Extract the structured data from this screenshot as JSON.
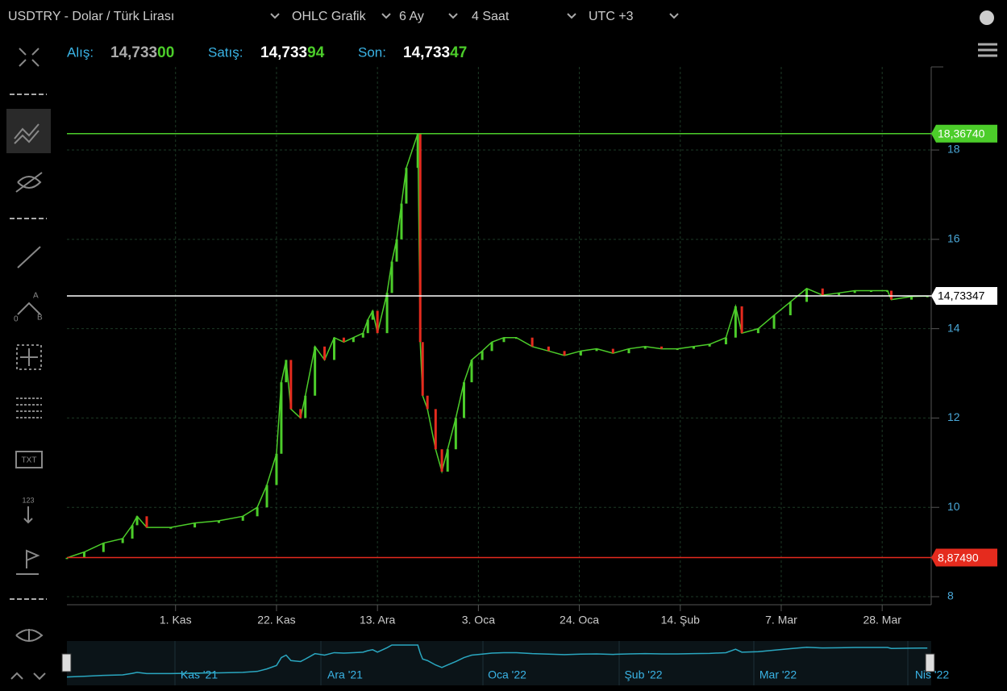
{
  "header": {
    "title": "USDTRY - Dolar / Türk Lirası",
    "menus": [
      "OHLC Grafik",
      "6 Ay",
      "4 Saat",
      "UTC +3"
    ]
  },
  "quote": {
    "bid_label": "Alış:",
    "bid_main": "14,733",
    "bid_tail": "00",
    "ask_label": "Satış:",
    "ask_main": "14,733",
    "ask_tail": "94",
    "last_label": "Son:",
    "last_main": "14,733",
    "last_tail": "47"
  },
  "toolbar": {
    "a": "A",
    "zero": "0",
    "b": "B",
    "txt": "TXT",
    "num": "123"
  },
  "navigator": {
    "labels": [
      "Kas '21",
      "Ara '21",
      "Oca '22",
      "Şub '22",
      "Mar '22",
      "Nis '22"
    ]
  },
  "chart_data": {
    "type": "line",
    "up_color": "#4ccd2a",
    "down_color": "#e52b1e",
    "x": [
      8.4,
      12,
      16,
      20,
      22,
      23,
      25,
      30,
      35,
      40,
      45,
      48,
      50,
      52,
      53,
      54,
      55,
      57,
      58,
      60,
      62,
      64,
      66,
      68,
      70,
      71,
      72,
      73,
      75,
      76,
      77,
      78,
      79,
      81.4,
      81.9,
      82.4,
      83.4,
      85.1,
      86.4,
      87.6,
      89.3,
      91,
      92.6,
      94.8,
      96.8,
      99.3,
      101.9,
      105.2,
      108.6,
      111.9,
      115.3,
      118.6,
      122,
      125.3,
      128.7,
      132.1,
      135.4,
      138.8,
      142.1,
      145.5,
      147.5,
      148.8,
      152.2,
      155.5,
      158.9,
      162.3,
      165.6,
      169,
      172.3,
      175.7,
      179.1,
      179.9,
      184.1,
      187.4
    ],
    "values": [
      8.87,
      9.0,
      9.2,
      9.3,
      9.6,
      9.8,
      9.55,
      9.55,
      9.65,
      9.7,
      9.8,
      10.0,
      10.5,
      11.2,
      12.8,
      13.3,
      12.2,
      12.0,
      12.5,
      13.6,
      13.3,
      13.8,
      13.7,
      13.8,
      13.9,
      14.2,
      14.4,
      13.9,
      14.8,
      15.5,
      16.0,
      16.8,
      17.6,
      18.37,
      13.7,
      12.5,
      12.2,
      11.3,
      10.8,
      11.3,
      12.0,
      12.8,
      13.3,
      13.5,
      13.7,
      13.8,
      13.8,
      13.6,
      13.5,
      13.4,
      13.5,
      13.55,
      13.45,
      13.55,
      13.6,
      13.55,
      13.55,
      13.6,
      13.65,
      13.8,
      14.5,
      13.9,
      14.0,
      14.3,
      14.6,
      14.9,
      14.75,
      14.8,
      14.85,
      14.85,
      14.85,
      14.65,
      14.72,
      14.73
    ],
    "xlim": [
      8.4,
      188.2
    ],
    "xticks": [
      {
        "value": 31,
        "label": "1. Kas"
      },
      {
        "value": 52,
        "label": "22. Kas"
      },
      {
        "value": 73,
        "label": "13. Ara"
      },
      {
        "value": 94,
        "label": "3. Oca"
      },
      {
        "value": 115,
        "label": "24. Oca"
      },
      {
        "value": 136,
        "label": "14. Şub"
      },
      {
        "value": 157,
        "label": "7. Mar"
      },
      {
        "value": 178,
        "label": "28. Mar"
      }
    ],
    "ylim": [
      7.82,
      19.86
    ],
    "yticks": [
      8,
      10,
      12,
      14,
      16,
      18
    ],
    "grid": true,
    "hlines": [
      {
        "value": 18.3674,
        "label": "18,36740",
        "color": "#4ccd2a"
      },
      {
        "value": 14.73347,
        "label": "14,73347",
        "color": "#ffffff"
      },
      {
        "value": 8.8749,
        "label": "8,87490",
        "color": "#e52b1e"
      }
    ]
  }
}
